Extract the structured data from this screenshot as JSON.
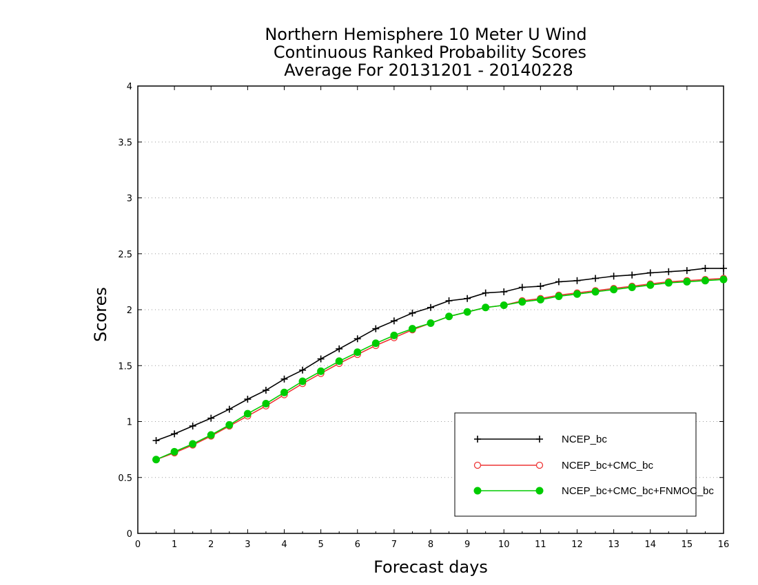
{
  "chart_data": {
    "type": "line",
    "title_lines": [
      "Northern Hemisphere 10 Meter U Wind",
      "Continuous Ranked Probability Scores",
      "Average For 20131201 - 20140228"
    ],
    "xlabel": "Forecast days",
    "ylabel": "Scores",
    "xlim": [
      0,
      16
    ],
    "ylim": [
      0,
      4
    ],
    "x_ticks": [
      "0",
      "1",
      "2",
      "3",
      "4",
      "5",
      "6",
      "7",
      "8",
      "9",
      "10",
      "11",
      "12",
      "13",
      "14",
      "15",
      "16"
    ],
    "y_ticks": [
      "0",
      "0.5",
      "1",
      "1.5",
      "2",
      "2.5",
      "3",
      "3.5",
      "4"
    ],
    "grid": "horizontal-dotted",
    "legend_position": "bottom-right",
    "x": [
      0.5,
      1,
      1.5,
      2,
      2.5,
      3,
      3.5,
      4,
      4.5,
      5,
      5.5,
      6,
      6.5,
      7,
      7.5,
      8,
      8.5,
      9,
      9.5,
      10,
      10.5,
      11,
      11.5,
      12,
      12.5,
      13,
      13.5,
      14,
      14.5,
      15,
      15.5,
      16
    ],
    "series": [
      {
        "name": "NCEP_bc",
        "color": "#000000",
        "marker": "plus",
        "values": [
          0.83,
          0.89,
          0.96,
          1.03,
          1.11,
          1.2,
          1.28,
          1.38,
          1.46,
          1.56,
          1.65,
          1.74,
          1.83,
          1.9,
          1.97,
          2.02,
          2.08,
          2.1,
          2.15,
          2.16,
          2.2,
          2.21,
          2.25,
          2.26,
          2.28,
          2.3,
          2.31,
          2.33,
          2.34,
          2.35,
          2.37,
          2.37
        ]
      },
      {
        "name": "NCEP_bc+CMC_bc",
        "color": "#ee3333",
        "marker": "open-circle",
        "values": [
          0.66,
          0.72,
          0.79,
          0.87,
          0.96,
          1.05,
          1.14,
          1.24,
          1.34,
          1.43,
          1.52,
          1.6,
          1.68,
          1.75,
          1.82,
          1.88,
          1.94,
          1.98,
          2.02,
          2.04,
          2.08,
          2.1,
          2.13,
          2.15,
          2.17,
          2.19,
          2.21,
          2.23,
          2.25,
          2.26,
          2.27,
          2.28
        ]
      },
      {
        "name": "NCEP_bc+CMC_bc+FNMOC_bc",
        "color": "#00cc00",
        "marker": "filled-circle",
        "values": [
          0.66,
          0.73,
          0.8,
          0.88,
          0.97,
          1.07,
          1.16,
          1.26,
          1.36,
          1.45,
          1.54,
          1.62,
          1.7,
          1.77,
          1.83,
          1.88,
          1.94,
          1.98,
          2.02,
          2.04,
          2.07,
          2.09,
          2.12,
          2.14,
          2.16,
          2.18,
          2.2,
          2.22,
          2.24,
          2.25,
          2.26,
          2.27
        ]
      }
    ]
  }
}
